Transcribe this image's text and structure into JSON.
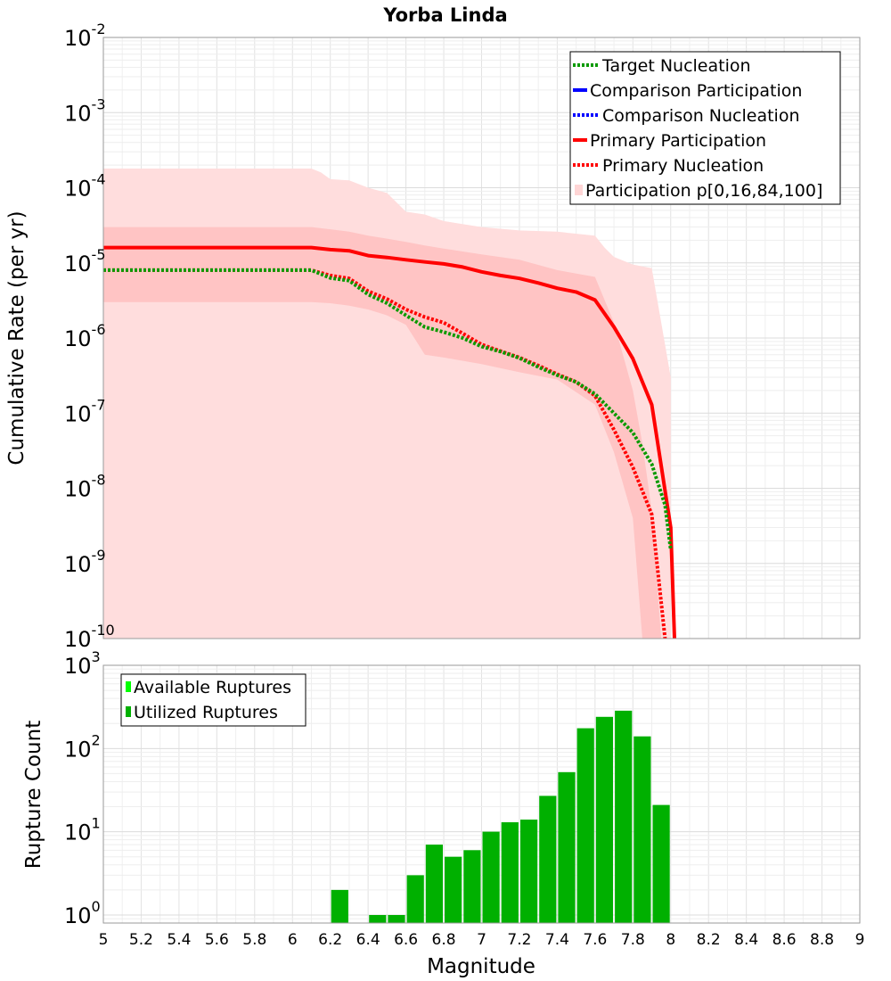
{
  "chart_data": [
    {
      "type": "line",
      "title": "Yorba Linda",
      "ylabel": "Cumulative Rate (per yr)",
      "xlim": [
        5,
        9
      ],
      "ylim": [
        1e-10,
        0.01
      ],
      "y_scale": "log",
      "grid": true,
      "legend_position": "top-right",
      "y_tick_labels": [
        {
          "base": "10",
          "exp": "-2"
        },
        {
          "base": "10",
          "exp": "-3"
        },
        {
          "base": "10",
          "exp": "-4"
        },
        {
          "base": "10",
          "exp": "-5"
        },
        {
          "base": "10",
          "exp": "-6"
        },
        {
          "base": "10",
          "exp": "-7"
        },
        {
          "base": "10",
          "exp": "-8"
        },
        {
          "base": "10",
          "exp": "-9"
        },
        {
          "base": "10",
          "exp": "-10"
        }
      ],
      "legend": [
        {
          "label": "Target Nucleation",
          "color": "#0a9a00",
          "style": "dotted"
        },
        {
          "label": "Comparison Participation",
          "color": "#0000ff",
          "style": "solid"
        },
        {
          "label": "Comparison Nucleation",
          "color": "#0000ff",
          "style": "dotted"
        },
        {
          "label": "Primary Participation",
          "color": "#ff0000",
          "style": "solid"
        },
        {
          "label": "Primary Nucleation",
          "color": "#ff0000",
          "style": "dotted"
        },
        {
          "label": "Participation p[0,16,84,100]",
          "color": "#ffd6d6",
          "style": "band"
        }
      ],
      "bands": [
        {
          "name": "p0-p100",
          "color": "#ffdddd",
          "x": [
            5.0,
            6.1,
            6.15,
            6.2,
            6.3,
            6.4,
            6.5,
            6.6,
            6.7,
            6.8,
            7.0,
            7.2,
            7.4,
            7.6,
            7.65,
            7.7,
            7.8,
            7.9,
            8.0,
            8.0
          ],
          "upper": [
            0.00018,
            0.00018,
            0.00016,
            0.00013,
            0.000125,
            0.0001,
            8.5e-05,
            4.8e-05,
            4.4e-05,
            3.6e-05,
            3e-05,
            2.7e-05,
            2.6e-05,
            2.3e-05,
            1.6e-05,
            1.2e-05,
            9.5e-06,
            8.5e-06,
            3e-07,
            1e-10
          ],
          "lower": [
            1e-10,
            1e-10,
            1e-10,
            1e-10,
            1e-10,
            1e-10,
            1e-10,
            1e-10,
            1e-10,
            1e-10,
            1e-10,
            1e-10,
            1e-10,
            1e-10,
            1e-10,
            1e-10,
            1e-10,
            1e-10,
            1e-10,
            1e-10
          ]
        },
        {
          "name": "p16-p84",
          "color": "#ffc4c4",
          "x": [
            5.0,
            6.1,
            6.2,
            6.3,
            6.4,
            6.5,
            6.6,
            6.7,
            6.8,
            7.0,
            7.2,
            7.4,
            7.6,
            7.7,
            7.8,
            7.85,
            7.9,
            7.95
          ],
          "upper": [
            3e-05,
            3e-05,
            2.8e-05,
            2.6e-05,
            2.3e-05,
            2.1e-05,
            1.9e-05,
            1.7e-05,
            1.55e-05,
            1.3e-05,
            1.1e-05,
            8e-06,
            6.5e-06,
            1.6e-06,
            2e-07,
            4e-08,
            5e-09,
            1e-10
          ],
          "lower": [
            3e-06,
            3e-06,
            2.9e-06,
            2.7e-06,
            2.4e-06,
            2e-06,
            1.5e-06,
            6e-07,
            5.5e-07,
            4.5e-07,
            3.5e-07,
            2.8e-07,
            1.3e-07,
            3e-08,
            4e-09,
            1e-10,
            1e-10,
            1e-10
          ]
        }
      ],
      "series": [
        {
          "name": "Primary Participation",
          "color": "#ff0000",
          "style": "solid",
          "x": [
            5.0,
            6.1,
            6.2,
            6.3,
            6.4,
            6.5,
            6.6,
            6.7,
            6.8,
            6.9,
            7.0,
            7.1,
            7.2,
            7.3,
            7.4,
            7.5,
            7.6,
            7.7,
            7.8,
            7.9,
            8.0,
            8.02
          ],
          "y": [
            1.6e-05,
            1.6e-05,
            1.5e-05,
            1.45e-05,
            1.25e-05,
            1.18e-05,
            1.1e-05,
            1.03e-05,
            9.7e-06,
            8.8e-06,
            7.6e-06,
            6.8e-06,
            6.2e-06,
            5.4e-06,
            4.6e-06,
            4.1e-06,
            3.2e-06,
            1.4e-06,
            5.3e-07,
            1.3e-07,
            3e-09,
            1e-10
          ]
        },
        {
          "name": "Primary Nucleation",
          "color": "#ff0000",
          "style": "dotted",
          "x": [
            5.0,
            6.1,
            6.2,
            6.3,
            6.4,
            6.5,
            6.6,
            6.7,
            6.8,
            6.9,
            7.0,
            7.1,
            7.2,
            7.3,
            7.4,
            7.5,
            7.6,
            7.7,
            7.8,
            7.9,
            7.95,
            7.97
          ],
          "y": [
            8e-06,
            8e-06,
            6.8e-06,
            6.2e-06,
            4.2e-06,
            3.3e-06,
            2.4e-06,
            1.9e-06,
            1.6e-06,
            1.15e-06,
            8.2e-07,
            6.7e-07,
            5.5e-07,
            4.3e-07,
            3.3e-07,
            2.6e-07,
            1.7e-07,
            6e-08,
            1.9e-08,
            4.5e-09,
            3e-10,
            1e-10
          ]
        },
        {
          "name": "Target Nucleation",
          "color": "#0a9a00",
          "style": "dotted",
          "x": [
            5.0,
            6.1,
            6.2,
            6.3,
            6.4,
            6.5,
            6.6,
            6.7,
            6.8,
            6.9,
            7.0,
            7.1,
            7.2,
            7.3,
            7.4,
            7.5,
            7.6,
            7.7,
            7.8,
            7.9,
            7.97,
            8.0
          ],
          "y": [
            8e-06,
            8e-06,
            6.3e-06,
            5.8e-06,
            3.8e-06,
            2.9e-06,
            2e-06,
            1.4e-06,
            1.2e-06,
            1e-06,
            7.7e-07,
            6.6e-07,
            5.4e-07,
            4.1e-07,
            3.2e-07,
            2.6e-07,
            1.8e-07,
            1e-07,
            5.5e-08,
            2.1e-08,
            6e-09,
            1.5e-09
          ]
        }
      ]
    },
    {
      "type": "bar",
      "ylabel": "Rupture Count",
      "xlabel": "Magnitude",
      "xlim": [
        5,
        9
      ],
      "ylim": [
        0.8,
        1000
      ],
      "y_scale": "log",
      "grid": true,
      "legend_position": "top-left",
      "x_ticks": [
        "5",
        "5.2",
        "5.4",
        "5.6",
        "5.8",
        "6",
        "6.2",
        "6.4",
        "6.6",
        "6.8",
        "7",
        "7.2",
        "7.4",
        "7.6",
        "7.8",
        "8",
        "8.2",
        "8.4",
        "8.6",
        "8.8",
        "9"
      ],
      "y_tick_labels": [
        {
          "base": "10",
          "exp": "3"
        },
        {
          "base": "10",
          "exp": "2"
        },
        {
          "base": "10",
          "exp": "1"
        },
        {
          "base": "10",
          "exp": "0"
        }
      ],
      "legend": [
        {
          "label": "Available Ruptures",
          "color": "#00ff00"
        },
        {
          "label": "Utilized Ruptures",
          "color": "#00b000"
        }
      ],
      "bar_color": "#00b000",
      "bin_width": 0.1,
      "bin_starts": [
        6.2,
        6.4,
        6.5,
        6.6,
        6.7,
        6.8,
        6.9,
        7.0,
        7.1,
        7.2,
        7.3,
        7.4,
        7.5,
        7.6,
        7.7,
        7.8,
        7.9
      ],
      "values": [
        2,
        1,
        1,
        3,
        7,
        5,
        6,
        10,
        13,
        14,
        27,
        52,
        175,
        240,
        285,
        140,
        21
      ]
    }
  ]
}
